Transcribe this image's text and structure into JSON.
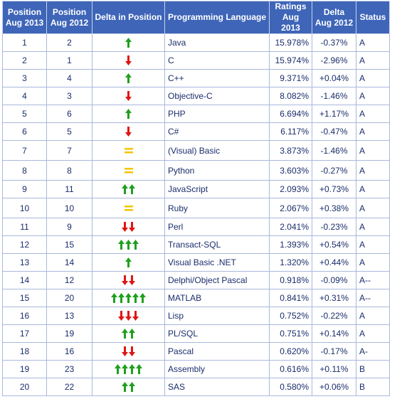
{
  "colors": {
    "header_bg": "#3e65b8",
    "up": "#1ea01e",
    "down": "#e01414",
    "same": "#f5c400"
  },
  "headers": {
    "pos2013": "Position Aug 2013",
    "pos2012": "Position Aug 2012",
    "delta_pos": "Delta in Position",
    "language": "Programming Language",
    "ratings": "Ratings Aug 2013",
    "delta_rating": "Delta Aug 2012",
    "status": "Status"
  },
  "rows": [
    {
      "pos2013": "1",
      "pos2012": "2",
      "arrow": "up",
      "count": 1,
      "language": "Java",
      "ratings": "15.978%",
      "delta": "-0.37%",
      "status": "A"
    },
    {
      "pos2013": "2",
      "pos2012": "1",
      "arrow": "down",
      "count": 1,
      "language": "C",
      "ratings": "15.974%",
      "delta": "-2.96%",
      "status": "A"
    },
    {
      "pos2013": "3",
      "pos2012": "4",
      "arrow": "up",
      "count": 1,
      "language": "C++",
      "ratings": "9.371%",
      "delta": "+0.04%",
      "status": "A"
    },
    {
      "pos2013": "4",
      "pos2012": "3",
      "arrow": "down",
      "count": 1,
      "language": "Objective-C",
      "ratings": "8.082%",
      "delta": "-1.46%",
      "status": "A"
    },
    {
      "pos2013": "5",
      "pos2012": "6",
      "arrow": "up",
      "count": 1,
      "language": "PHP",
      "ratings": "6.694%",
      "delta": "+1.17%",
      "status": "A"
    },
    {
      "pos2013": "6",
      "pos2012": "5",
      "arrow": "down",
      "count": 1,
      "language": "C#",
      "ratings": "6.117%",
      "delta": "-0.47%",
      "status": "A"
    },
    {
      "pos2013": "7",
      "pos2012": "7",
      "arrow": "same",
      "count": 1,
      "language": "(Visual) Basic",
      "ratings": "3.873%",
      "delta": "-1.46%",
      "status": "A"
    },
    {
      "pos2013": "8",
      "pos2012": "8",
      "arrow": "same",
      "count": 1,
      "language": "Python",
      "ratings": "3.603%",
      "delta": "-0.27%",
      "status": "A"
    },
    {
      "pos2013": "9",
      "pos2012": "11",
      "arrow": "up",
      "count": 2,
      "language": "JavaScript",
      "ratings": "2.093%",
      "delta": "+0.73%",
      "status": "A"
    },
    {
      "pos2013": "10",
      "pos2012": "10",
      "arrow": "same",
      "count": 1,
      "language": "Ruby",
      "ratings": "2.067%",
      "delta": "+0.38%",
      "status": "A"
    },
    {
      "pos2013": "11",
      "pos2012": "9",
      "arrow": "down",
      "count": 2,
      "language": "Perl",
      "ratings": "2.041%",
      "delta": "-0.23%",
      "status": "A"
    },
    {
      "pos2013": "12",
      "pos2012": "15",
      "arrow": "up",
      "count": 3,
      "language": "Transact-SQL",
      "ratings": "1.393%",
      "delta": "+0.54%",
      "status": "A"
    },
    {
      "pos2013": "13",
      "pos2012": "14",
      "arrow": "up",
      "count": 1,
      "language": "Visual Basic .NET",
      "ratings": "1.320%",
      "delta": "+0.44%",
      "status": "A"
    },
    {
      "pos2013": "14",
      "pos2012": "12",
      "arrow": "down",
      "count": 2,
      "language": "Delphi/Object Pascal",
      "ratings": "0.918%",
      "delta": "-0.09%",
      "status": "A--"
    },
    {
      "pos2013": "15",
      "pos2012": "20",
      "arrow": "up",
      "count": 5,
      "language": "MATLAB",
      "ratings": "0.841%",
      "delta": "+0.31%",
      "status": "A--"
    },
    {
      "pos2013": "16",
      "pos2012": "13",
      "arrow": "down",
      "count": 3,
      "language": "Lisp",
      "ratings": "0.752%",
      "delta": "-0.22%",
      "status": "A"
    },
    {
      "pos2013": "17",
      "pos2012": "19",
      "arrow": "up",
      "count": 2,
      "language": "PL/SQL",
      "ratings": "0.751%",
      "delta": "+0.14%",
      "status": "A"
    },
    {
      "pos2013": "18",
      "pos2012": "16",
      "arrow": "down",
      "count": 2,
      "language": "Pascal",
      "ratings": "0.620%",
      "delta": "-0.17%",
      "status": "A-"
    },
    {
      "pos2013": "19",
      "pos2012": "23",
      "arrow": "up",
      "count": 4,
      "language": "Assembly",
      "ratings": "0.616%",
      "delta": "+0.11%",
      "status": "B"
    },
    {
      "pos2013": "20",
      "pos2012": "22",
      "arrow": "up",
      "count": 2,
      "language": "SAS",
      "ratings": "0.580%",
      "delta": "+0.06%",
      "status": "B"
    }
  ]
}
